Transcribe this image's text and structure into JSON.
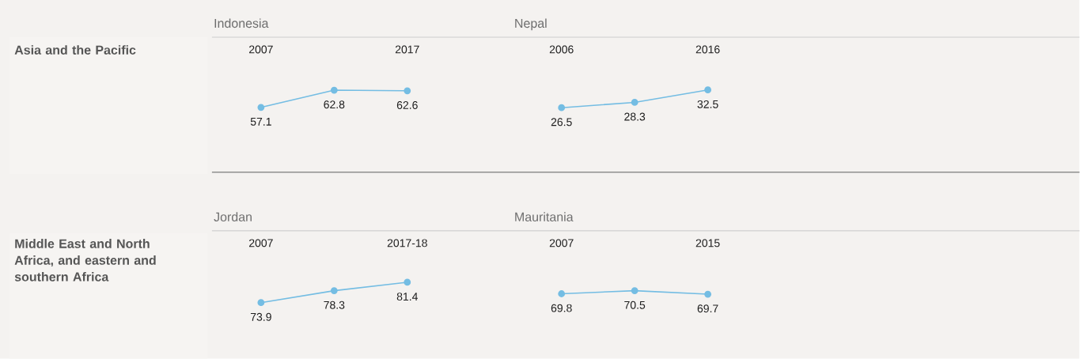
{
  "chart_data": [
    {
      "type": "line",
      "title": "Indonesia",
      "annotations": [
        "Asia and the Pacific"
      ],
      "categories": [
        "2007",
        null,
        "2017"
      ],
      "values": [
        57.1,
        62.8,
        62.6
      ],
      "value_labels": [
        "57.1",
        "62.8",
        "62.6"
      ],
      "color": "#74bde3",
      "marker": "circle"
    },
    {
      "type": "line",
      "title": "Nepal",
      "categories": [
        "2006",
        null,
        "2016"
      ],
      "values": [
        26.5,
        28.3,
        32.5
      ],
      "value_labels": [
        "26.5",
        "28.3",
        "32.5"
      ],
      "color": "#74bde3",
      "marker": "circle"
    },
    {
      "type": "line",
      "title": "Jordan",
      "annotations": [
        "Middle East and North Africa, and eastern and southern Africa"
      ],
      "categories": [
        "2007",
        null,
        "2017-18"
      ],
      "values": [
        73.9,
        78.3,
        81.4
      ],
      "value_labels": [
        "73.9",
        "78.3",
        "81.4"
      ],
      "color": "#74bde3",
      "marker": "circle"
    },
    {
      "type": "line",
      "title": "Mauritania",
      "categories": [
        "2007",
        null,
        "2015"
      ],
      "values": [
        69.8,
        70.5,
        69.7
      ],
      "value_labels": [
        "69.8",
        "70.5",
        "69.7"
      ],
      "color": "#74bde3",
      "marker": "circle"
    }
  ]
}
